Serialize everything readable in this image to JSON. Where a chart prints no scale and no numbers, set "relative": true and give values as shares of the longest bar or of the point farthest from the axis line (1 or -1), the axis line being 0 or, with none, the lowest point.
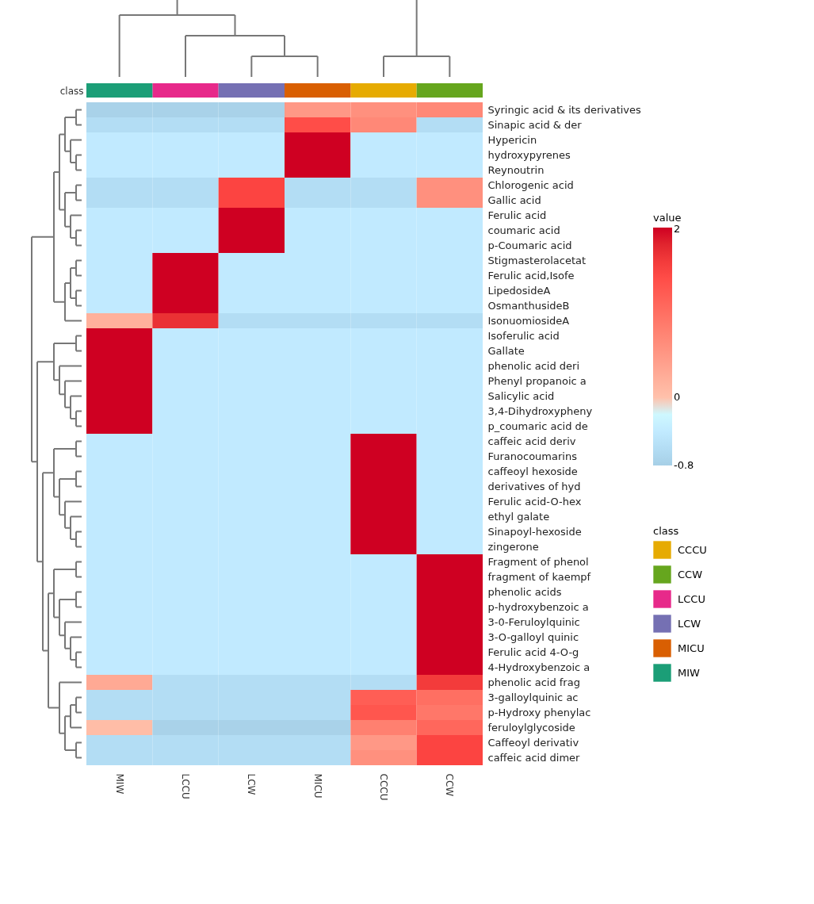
{
  "chart_data": [
    {
      "type": "bar",
      "relative": true,
      "ylabel": "class",
      "legend_title": "class",
      "legend": "right",
      "categories": [
        "MIW",
        "LCCU",
        "LCW",
        "MICU",
        "CCCU",
        "CCW"
      ],
      "series": [
        {
          "name": "CCCU",
          "color": "#e6ab02",
          "values": [
            null,
            null,
            null,
            null,
            1,
            null
          ]
        },
        {
          "name": "CCW",
          "color": "#66a61e",
          "values": [
            null,
            null,
            null,
            null,
            null,
            1
          ]
        },
        {
          "name": "LCCU",
          "color": "#e7298a",
          "values": [
            null,
            1,
            null,
            null,
            null,
            null
          ]
        },
        {
          "name": "LCW",
          "color": "#7570b3",
          "values": [
            null,
            null,
            1,
            null,
            null,
            null
          ]
        },
        {
          "name": "MICU",
          "color": "#d95f02",
          "values": [
            null,
            null,
            null,
            1,
            null,
            null
          ]
        },
        {
          "name": "MIW",
          "color": "#1b9e77",
          "values": [
            1,
            null,
            null,
            null,
            null,
            null
          ]
        }
      ]
    },
    {
      "type": "heatmap",
      "clabel": "value",
      "clim": [
        -0.8,
        2
      ],
      "cticks": [
        -0.8,
        0,
        2
      ],
      "tick_labels": "y",
      "categories": [
        "MIW",
        "LCCU",
        "LCW",
        "MICU",
        "CCCU",
        "CCW"
      ],
      "y_categories": [
        "Syringic acid & its derivatives",
        "Sinapic acid & der",
        "Hypericin",
        "hydroxypyrenes",
        "Reynoutrin",
        "Chlorogenic acid",
        "Gallic acid",
        "Ferulic acid",
        "coumaric acid",
        "p-Coumaric acid",
        "Stigmasterolacetat",
        "Ferulic acid,Isofe",
        "LipedosideA",
        "OsmanthusideB",
        "IsonuomiosideA",
        "Isoferulic acid",
        "Gallate",
        "phenolic acid deri",
        "Phenyl propanoic a",
        "Salicylic acid",
        "3,4-Dihydroxypheny",
        "p_coumaric acid de",
        "caffeic acid deriv",
        "Furanocoumarins",
        "caffeoyl hexoside",
        "derivatives of hyd",
        "Ferulic acid-O-hex",
        "ethyl galate",
        "Sinapoyl-hexoside",
        "zingerone",
        "Fragment of phenol",
        "fragment of kaempf",
        "phenolic acids",
        "p-hydroxybenzoic a",
        "3-0-Feruloylquinic",
        "3-O-galloyl quinic",
        "Ferulic acid 4-O-g",
        "4-Hydroxybenzoic a",
        "phenolic acid frag",
        "3-galloylquinic ac",
        "p-Hydroxy phenylac",
        "feruloylglycoside",
        "Caffeoyl derivativ",
        "caffeic acid dimer"
      ],
      "cells": [
        [
          -0.75,
          -0.75,
          -0.75,
          0.5,
          0.6,
          0.7
        ],
        [
          -0.6,
          -0.6,
          -0.6,
          1.4,
          0.7,
          -0.6
        ],
        [
          -0.4,
          -0.4,
          -0.4,
          2,
          -0.4,
          -0.4
        ],
        [
          -0.4,
          -0.4,
          -0.4,
          2,
          -0.4,
          -0.4
        ],
        [
          -0.4,
          -0.4,
          -0.4,
          2,
          -0.4,
          -0.4
        ],
        [
          -0.6,
          -0.6,
          1.5,
          -0.6,
          -0.6,
          0.6
        ],
        [
          -0.6,
          -0.6,
          1.5,
          -0.6,
          -0.6,
          0.6
        ],
        [
          -0.4,
          -0.4,
          2,
          -0.4,
          -0.4,
          -0.4
        ],
        [
          -0.4,
          -0.4,
          2,
          -0.4,
          -0.4,
          -0.4
        ],
        [
          -0.4,
          -0.4,
          2,
          -0.4,
          -0.4,
          -0.4
        ],
        [
          -0.4,
          2,
          -0.4,
          -0.4,
          -0.4,
          -0.4
        ],
        [
          -0.4,
          2,
          -0.4,
          -0.4,
          -0.4,
          -0.4
        ],
        [
          -0.4,
          2,
          -0.4,
          -0.4,
          -0.4,
          -0.4
        ],
        [
          -0.4,
          2,
          -0.4,
          -0.4,
          -0.4,
          -0.4
        ],
        [
          0.2,
          1.7,
          -0.6,
          -0.6,
          -0.6,
          -0.6
        ],
        [
          2,
          -0.4,
          -0.4,
          -0.4,
          -0.4,
          -0.4
        ],
        [
          2,
          -0.4,
          -0.4,
          -0.4,
          -0.4,
          -0.4
        ],
        [
          2,
          -0.4,
          -0.4,
          -0.4,
          -0.4,
          -0.4
        ],
        [
          2,
          -0.4,
          -0.4,
          -0.4,
          -0.4,
          -0.4
        ],
        [
          2,
          -0.4,
          -0.4,
          -0.4,
          -0.4,
          -0.4
        ],
        [
          2,
          -0.4,
          -0.4,
          -0.4,
          -0.4,
          -0.4
        ],
        [
          2,
          -0.4,
          -0.4,
          -0.4,
          -0.4,
          -0.4
        ],
        [
          -0.4,
          -0.4,
          -0.4,
          -0.4,
          2,
          -0.4
        ],
        [
          -0.4,
          -0.4,
          -0.4,
          -0.4,
          2,
          -0.4
        ],
        [
          -0.4,
          -0.4,
          -0.4,
          -0.4,
          2,
          -0.4
        ],
        [
          -0.4,
          -0.4,
          -0.4,
          -0.4,
          2,
          -0.4
        ],
        [
          -0.4,
          -0.4,
          -0.4,
          -0.4,
          2,
          -0.4
        ],
        [
          -0.4,
          -0.4,
          -0.4,
          -0.4,
          2,
          -0.4
        ],
        [
          -0.4,
          -0.4,
          -0.4,
          -0.4,
          2,
          -0.4
        ],
        [
          -0.4,
          -0.4,
          -0.4,
          -0.4,
          2,
          -0.4
        ],
        [
          -0.4,
          -0.4,
          -0.4,
          -0.4,
          -0.4,
          2
        ],
        [
          -0.4,
          -0.4,
          -0.4,
          -0.4,
          -0.4,
          2
        ],
        [
          -0.4,
          -0.4,
          -0.4,
          -0.4,
          -0.4,
          2
        ],
        [
          -0.4,
          -0.4,
          -0.4,
          -0.4,
          -0.4,
          2
        ],
        [
          -0.4,
          -0.4,
          -0.4,
          -0.4,
          -0.4,
          2
        ],
        [
          -0.4,
          -0.4,
          -0.4,
          -0.4,
          -0.4,
          2
        ],
        [
          -0.4,
          -0.4,
          -0.4,
          -0.4,
          -0.4,
          2
        ],
        [
          -0.4,
          -0.4,
          -0.4,
          -0.4,
          -0.4,
          2
        ],
        [
          0.3,
          -0.6,
          -0.6,
          -0.6,
          -0.6,
          1.6
        ],
        [
          -0.6,
          -0.6,
          -0.6,
          -0.6,
          1.2,
          1
        ],
        [
          -0.6,
          -0.6,
          -0.6,
          -0.6,
          1.3,
          0.9
        ],
        [
          0.05,
          -0.75,
          -0.75,
          -0.75,
          0.8,
          1.1
        ],
        [
          -0.6,
          -0.6,
          -0.6,
          -0.6,
          0.5,
          1.5
        ],
        [
          -0.6,
          -0.6,
          -0.6,
          -0.6,
          0.6,
          1.5
        ]
      ]
    }
  ]
}
